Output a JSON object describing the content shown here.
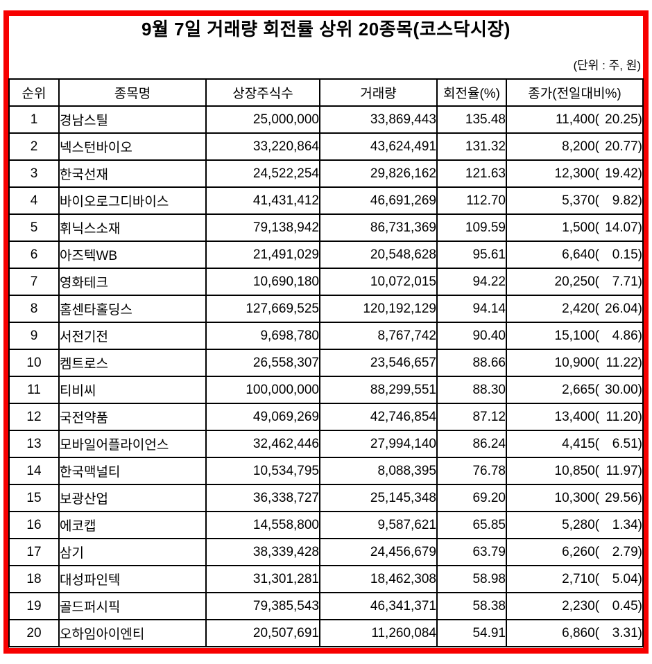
{
  "page": {
    "title": "9월 7일 거래량 회전률 상위 20종목(코스닥시장)",
    "unit_note": "(단위 : 주, 원)"
  },
  "colors": {
    "frame_border": "#f70000",
    "table_border": "#000000",
    "text": "#000000",
    "background": "#ffffff"
  },
  "table": {
    "columns": [
      "순위",
      "종목명",
      "상장주식수",
      "거래량",
      "회전율(%)",
      "종가(전일대비%)"
    ],
    "rows": [
      {
        "rank": "1",
        "name": "경남스틸",
        "shares": "25,000,000",
        "volume": "33,869,443",
        "turnover": "135.48",
        "close_price": "11,400",
        "close_pct": "20.25"
      },
      {
        "rank": "2",
        "name": "넥스턴바이오",
        "shares": "33,220,864",
        "volume": "43,624,491",
        "turnover": "131.32",
        "close_price": "8,200",
        "close_pct": "20.77"
      },
      {
        "rank": "3",
        "name": "한국선재",
        "shares": "24,522,254",
        "volume": "29,826,162",
        "turnover": "121.63",
        "close_price": "12,300",
        "close_pct": "19.42"
      },
      {
        "rank": "4",
        "name": "바이오로그디바이스",
        "shares": "41,431,412",
        "volume": "46,691,269",
        "turnover": "112.70",
        "close_price": "5,370",
        "close_pct": "9.82"
      },
      {
        "rank": "5",
        "name": "휘닉스소재",
        "shares": "79,138,942",
        "volume": "86,731,369",
        "turnover": "109.59",
        "close_price": "1,500",
        "close_pct": "14.07"
      },
      {
        "rank": "6",
        "name": "아즈텍WB",
        "shares": "21,491,029",
        "volume": "20,548,628",
        "turnover": "95.61",
        "close_price": "6,640",
        "close_pct": "0.15"
      },
      {
        "rank": "7",
        "name": "영화테크",
        "shares": "10,690,180",
        "volume": "10,072,015",
        "turnover": "94.22",
        "close_price": "20,250",
        "close_pct": "7.71"
      },
      {
        "rank": "8",
        "name": "홈센타홀딩스",
        "shares": "127,669,525",
        "volume": "120,192,129",
        "turnover": "94.14",
        "close_price": "2,420",
        "close_pct": "26.04"
      },
      {
        "rank": "9",
        "name": "서전기전",
        "shares": "9,698,780",
        "volume": "8,767,742",
        "turnover": "90.40",
        "close_price": "15,100",
        "close_pct": "4.86"
      },
      {
        "rank": "10",
        "name": "켐트로스",
        "shares": "26,558,307",
        "volume": "23,546,657",
        "turnover": "88.66",
        "close_price": "10,900",
        "close_pct": "11.22"
      },
      {
        "rank": "11",
        "name": "티비씨",
        "shares": "100,000,000",
        "volume": "88,299,551",
        "turnover": "88.30",
        "close_price": "2,665",
        "close_pct": "30.00"
      },
      {
        "rank": "12",
        "name": "국전약품",
        "shares": "49,069,269",
        "volume": "42,746,854",
        "turnover": "87.12",
        "close_price": "13,400",
        "close_pct": "11.20"
      },
      {
        "rank": "13",
        "name": "모바일어플라이언스",
        "shares": "32,462,446",
        "volume": "27,994,140",
        "turnover": "86.24",
        "close_price": "4,415",
        "close_pct": "6.51"
      },
      {
        "rank": "14",
        "name": "한국맥널티",
        "shares": "10,534,795",
        "volume": "8,088,395",
        "turnover": "76.78",
        "close_price": "10,850",
        "close_pct": "11.97"
      },
      {
        "rank": "15",
        "name": "보광산업",
        "shares": "36,338,727",
        "volume": "25,145,348",
        "turnover": "69.20",
        "close_price": "10,300",
        "close_pct": "29.56"
      },
      {
        "rank": "16",
        "name": "에코캡",
        "shares": "14,558,800",
        "volume": "9,587,621",
        "turnover": "65.85",
        "close_price": "5,280",
        "close_pct": "1.34"
      },
      {
        "rank": "17",
        "name": "삼기",
        "shares": "38,339,428",
        "volume": "24,456,679",
        "turnover": "63.79",
        "close_price": "6,260",
        "close_pct": "2.79"
      },
      {
        "rank": "18",
        "name": "대성파인텍",
        "shares": "31,301,281",
        "volume": "18,462,308",
        "turnover": "58.98",
        "close_price": "2,710",
        "close_pct": "5.04"
      },
      {
        "rank": "19",
        "name": "골드퍼시픽",
        "shares": "79,385,543",
        "volume": "46,341,371",
        "turnover": "58.38",
        "close_price": "2,230",
        "close_pct": "0.45"
      },
      {
        "rank": "20",
        "name": "오하임아이엔티",
        "shares": "20,507,691",
        "volume": "11,260,084",
        "turnover": "54.91",
        "close_price": "6,860",
        "close_pct": "3.31"
      }
    ]
  }
}
